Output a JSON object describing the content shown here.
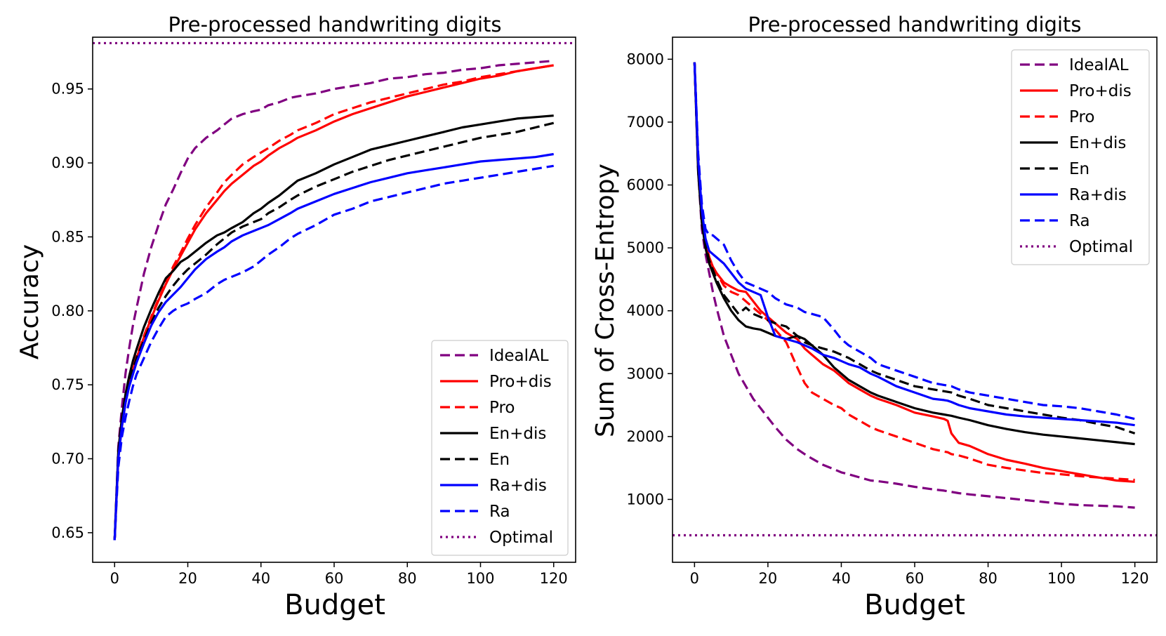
{
  "chart_data": [
    {
      "type": "line",
      "title": "Pre-processed handwriting digits",
      "xlabel": "Budget",
      "ylabel": "Accuracy",
      "xlim": [
        -6,
        126
      ],
      "ylim": [
        0.63,
        0.985
      ],
      "xticks": [
        0,
        20,
        40,
        60,
        80,
        100,
        120
      ],
      "xtick_labels": [
        "0",
        "20",
        "40",
        "60",
        "80",
        "100",
        "120"
      ],
      "yticks": [
        0.65,
        0.7,
        0.75,
        0.8,
        0.85,
        0.9,
        0.95
      ],
      "ytick_labels": [
        "0.65",
        "0.70",
        "0.75",
        "0.80",
        "0.85",
        "0.90",
        "0.95"
      ],
      "legend_position": "lower-right",
      "x": [
        0,
        1,
        2,
        3,
        4,
        5,
        6,
        8,
        10,
        12,
        14,
        16,
        18,
        20,
        22,
        25,
        28,
        30,
        32,
        35,
        38,
        40,
        42,
        45,
        48,
        50,
        55,
        60,
        65,
        70,
        75,
        80,
        85,
        90,
        95,
        100,
        105,
        110,
        115,
        120
      ],
      "series": [
        {
          "name": "IdealAL",
          "color": "#800080",
          "dash": "dashed",
          "values": [
            0.645,
            0.708,
            0.735,
            0.758,
            0.775,
            0.79,
            0.802,
            0.825,
            0.843,
            0.858,
            0.872,
            0.882,
            0.893,
            0.903,
            0.91,
            0.917,
            0.922,
            0.926,
            0.93,
            0.933,
            0.935,
            0.936,
            0.939,
            0.941,
            0.944,
            0.945,
            0.947,
            0.95,
            0.952,
            0.954,
            0.957,
            0.958,
            0.96,
            0.961,
            0.963,
            0.964,
            0.966,
            0.967,
            0.968,
            0.969
          ]
        },
        {
          "name": "Pro+dis",
          "color": "#ff0000",
          "dash": "solid",
          "values": [
            0.645,
            0.7,
            0.722,
            0.738,
            0.75,
            0.76,
            0.768,
            0.782,
            0.795,
            0.807,
            0.818,
            0.828,
            0.837,
            0.846,
            0.855,
            0.866,
            0.875,
            0.881,
            0.886,
            0.892,
            0.898,
            0.901,
            0.905,
            0.91,
            0.914,
            0.917,
            0.922,
            0.928,
            0.933,
            0.937,
            0.941,
            0.945,
            0.948,
            0.951,
            0.954,
            0.957,
            0.959,
            0.962,
            0.964,
            0.966
          ]
        },
        {
          "name": "Pro",
          "color": "#ff0000",
          "dash": "dashed",
          "values": [
            0.645,
            0.7,
            0.723,
            0.739,
            0.751,
            0.761,
            0.769,
            0.783,
            0.796,
            0.808,
            0.819,
            0.83,
            0.839,
            0.849,
            0.858,
            0.87,
            0.88,
            0.887,
            0.892,
            0.899,
            0.904,
            0.907,
            0.91,
            0.915,
            0.919,
            0.922,
            0.927,
            0.933,
            0.937,
            0.941,
            0.944,
            0.947,
            0.95,
            0.953,
            0.955,
            0.958,
            0.96,
            0.962,
            0.964,
            0.966
          ]
        },
        {
          "name": "En+dis",
          "color": "#000000",
          "dash": "solid",
          "values": [
            0.645,
            0.705,
            0.728,
            0.744,
            0.756,
            0.766,
            0.774,
            0.789,
            0.801,
            0.812,
            0.822,
            0.827,
            0.833,
            0.836,
            0.84,
            0.846,
            0.851,
            0.853,
            0.856,
            0.86,
            0.866,
            0.869,
            0.873,
            0.878,
            0.884,
            0.888,
            0.893,
            0.899,
            0.904,
            0.909,
            0.912,
            0.915,
            0.918,
            0.921,
            0.924,
            0.926,
            0.928,
            0.93,
            0.931,
            0.932
          ]
        },
        {
          "name": "En",
          "color": "#000000",
          "dash": "dashed",
          "values": [
            0.645,
            0.703,
            0.725,
            0.74,
            0.751,
            0.76,
            0.768,
            0.78,
            0.792,
            0.802,
            0.81,
            0.817,
            0.823,
            0.828,
            0.832,
            0.838,
            0.845,
            0.849,
            0.853,
            0.857,
            0.86,
            0.862,
            0.866,
            0.87,
            0.875,
            0.878,
            0.884,
            0.889,
            0.894,
            0.898,
            0.902,
            0.905,
            0.908,
            0.911,
            0.914,
            0.917,
            0.919,
            0.921,
            0.924,
            0.927
          ]
        },
        {
          "name": "Ra+dis",
          "color": "#0000ff",
          "dash": "solid",
          "values": [
            0.645,
            0.7,
            0.722,
            0.738,
            0.749,
            0.757,
            0.765,
            0.778,
            0.79,
            0.799,
            0.806,
            0.811,
            0.816,
            0.822,
            0.828,
            0.835,
            0.84,
            0.843,
            0.847,
            0.851,
            0.854,
            0.856,
            0.858,
            0.862,
            0.866,
            0.869,
            0.874,
            0.879,
            0.883,
            0.887,
            0.89,
            0.893,
            0.895,
            0.897,
            0.899,
            0.901,
            0.902,
            0.903,
            0.904,
            0.906
          ]
        },
        {
          "name": "Ra",
          "color": "#0000ff",
          "dash": "dashed",
          "values": [
            0.645,
            0.694,
            0.715,
            0.728,
            0.739,
            0.749,
            0.757,
            0.768,
            0.779,
            0.788,
            0.796,
            0.8,
            0.803,
            0.805,
            0.808,
            0.812,
            0.818,
            0.821,
            0.823,
            0.826,
            0.83,
            0.834,
            0.838,
            0.843,
            0.849,
            0.852,
            0.858,
            0.865,
            0.869,
            0.874,
            0.877,
            0.88,
            0.883,
            0.886,
            0.888,
            0.89,
            0.892,
            0.894,
            0.896,
            0.898
          ]
        }
      ],
      "hlines": [
        {
          "name": "Optimal",
          "color": "#800080",
          "dash": "dotted",
          "value": 0.981
        }
      ]
    },
    {
      "type": "line",
      "title": "Pre-processed handwriting digits",
      "xlabel": "Budget",
      "ylabel": "Sum of Cross-Entropy",
      "xlim": [
        -6,
        126
      ],
      "ylim": [
        0,
        8350
      ],
      "xticks": [
        0,
        20,
        40,
        60,
        80,
        100,
        120
      ],
      "xtick_labels": [
        "0",
        "20",
        "40",
        "60",
        "80",
        "100",
        "120"
      ],
      "yticks": [
        1000,
        2000,
        3000,
        4000,
        5000,
        6000,
        7000,
        8000
      ],
      "ytick_labels": [
        "1000",
        "2000",
        "3000",
        "4000",
        "5000",
        "6000",
        "7000",
        "8000"
      ],
      "legend_position": "upper-right",
      "x": [
        0,
        1,
        2,
        3,
        4,
        5,
        6,
        8,
        10,
        12,
        14,
        16,
        18,
        20,
        22,
        25,
        28,
        30,
        32,
        35,
        38,
        40,
        42,
        45,
        48,
        50,
        55,
        60,
        65,
        68,
        69,
        70,
        72,
        75,
        80,
        85,
        90,
        95,
        100,
        105,
        110,
        115,
        120
      ],
      "series": [
        {
          "name": "IdealAL",
          "color": "#800080",
          "dash": "dashed",
          "values": [
            7950,
            6200,
            5300,
            4900,
            4600,
            4300,
            4050,
            3600,
            3300,
            3000,
            2800,
            2600,
            2450,
            2300,
            2150,
            1950,
            1800,
            1720,
            1650,
            1550,
            1480,
            1430,
            1400,
            1350,
            1300,
            1290,
            1250,
            1200,
            1160,
            1140,
            1130,
            1120,
            1100,
            1080,
            1050,
            1020,
            990,
            960,
            930,
            910,
            900,
            890,
            870
          ]
        },
        {
          "name": "Pro+dis",
          "color": "#ff0000",
          "dash": "solid",
          "values": [
            7950,
            6300,
            5500,
            5100,
            4850,
            4700,
            4600,
            4450,
            4380,
            4320,
            4300,
            4150,
            4000,
            3900,
            3800,
            3650,
            3550,
            3400,
            3300,
            3150,
            3050,
            2950,
            2850,
            2750,
            2650,
            2600,
            2500,
            2380,
            2320,
            2280,
            2250,
            2050,
            1900,
            1850,
            1720,
            1630,
            1570,
            1500,
            1450,
            1400,
            1350,
            1300,
            1280
          ]
        },
        {
          "name": "Pro",
          "color": "#ff0000",
          "dash": "dashed",
          "values": [
            7950,
            6300,
            5500,
            5100,
            4850,
            4700,
            4600,
            4400,
            4300,
            4250,
            4150,
            4050,
            3950,
            3850,
            3700,
            3500,
            3100,
            2850,
            2700,
            2600,
            2500,
            2450,
            2350,
            2250,
            2150,
            2100,
            2000,
            1900,
            1800,
            1760,
            1750,
            1720,
            1700,
            1650,
            1550,
            1500,
            1460,
            1420,
            1400,
            1370,
            1350,
            1330,
            1310
          ]
        },
        {
          "name": "En+dis",
          "color": "#000000",
          "dash": "solid",
          "values": [
            7950,
            6200,
            5400,
            5000,
            4750,
            4600,
            4450,
            4200,
            4000,
            3850,
            3750,
            3720,
            3700,
            3650,
            3600,
            3550,
            3600,
            3550,
            3450,
            3300,
            3100,
            3000,
            2900,
            2800,
            2700,
            2650,
            2550,
            2450,
            2380,
            2350,
            2340,
            2330,
            2300,
            2260,
            2180,
            2120,
            2070,
            2030,
            2000,
            1970,
            1940,
            1910,
            1880
          ]
        },
        {
          "name": "En",
          "color": "#000000",
          "dash": "dashed",
          "values": [
            7950,
            6250,
            5450,
            5050,
            4800,
            4650,
            4500,
            4250,
            4100,
            3950,
            4050,
            3950,
            3900,
            3850,
            3800,
            3750,
            3600,
            3500,
            3450,
            3400,
            3350,
            3300,
            3250,
            3150,
            3050,
            3000,
            2900,
            2800,
            2750,
            2720,
            2710,
            2700,
            2650,
            2600,
            2500,
            2450,
            2400,
            2350,
            2300,
            2260,
            2200,
            2150,
            2050
          ]
        },
        {
          "name": "Ra+dis",
          "color": "#0000ff",
          "dash": "solid",
          "values": [
            7950,
            6400,
            5600,
            5150,
            4950,
            4900,
            4850,
            4750,
            4600,
            4450,
            4350,
            4300,
            4250,
            3900,
            3600,
            3550,
            3500,
            3450,
            3400,
            3300,
            3250,
            3200,
            3150,
            3100,
            3000,
            2950,
            2800,
            2700,
            2600,
            2580,
            2570,
            2550,
            2500,
            2450,
            2400,
            2350,
            2320,
            2300,
            2280,
            2260,
            2240,
            2220,
            2180
          ]
        },
        {
          "name": "Ra",
          "color": "#0000ff",
          "dash": "dashed",
          "values": [
            7950,
            6500,
            5700,
            5300,
            5200,
            5200,
            5150,
            5050,
            4800,
            4600,
            4450,
            4400,
            4350,
            4300,
            4200,
            4100,
            4050,
            3980,
            3950,
            3900,
            3700,
            3550,
            3450,
            3350,
            3250,
            3150,
            3050,
            2950,
            2850,
            2820,
            2810,
            2800,
            2750,
            2700,
            2650,
            2600,
            2550,
            2500,
            2480,
            2450,
            2400,
            2350,
            2280
          ]
        }
      ],
      "hlines": [
        {
          "name": "Optimal",
          "color": "#800080",
          "dash": "dotted",
          "value": 430
        }
      ]
    }
  ]
}
